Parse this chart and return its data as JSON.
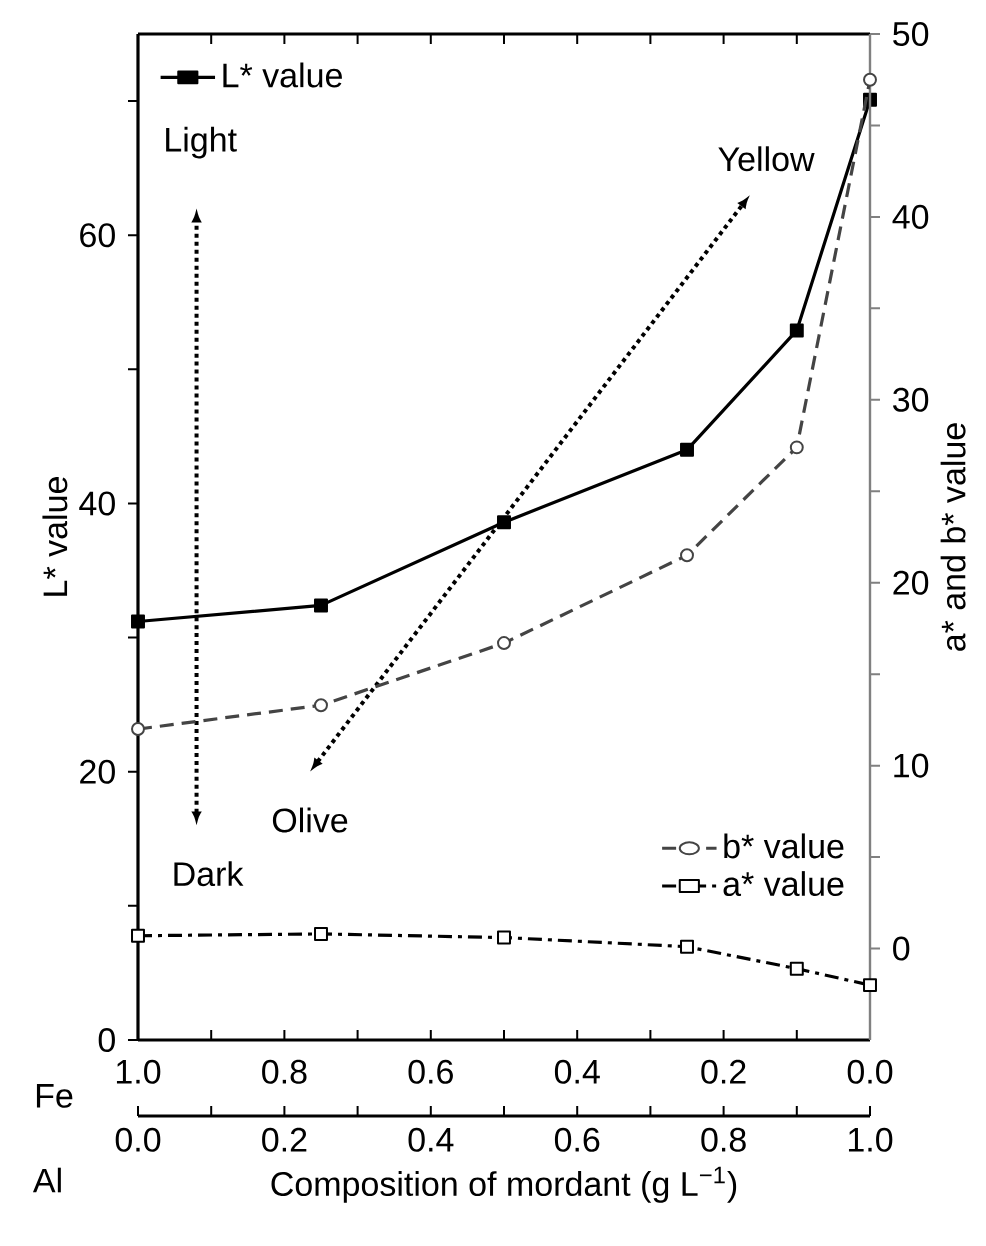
{
  "chart_data": {
    "type": "line",
    "xlabel": "Composition of mordant (g L$^{−1}$)",
    "ylabel": "L* value",
    "y2label": "a* and b* value",
    "x": [
      1.0,
      0.75,
      0.5,
      0.25,
      0.1,
      0.0
    ],
    "xlim": [
      1.0,
      0.0
    ],
    "xticks": [
      {
        "value": 1.0,
        "label": "1.0"
      },
      {
        "value": 0.9,
        "label": null
      },
      {
        "value": 0.8,
        "label": "0.8"
      },
      {
        "value": 0.7,
        "label": null
      },
      {
        "value": 0.6,
        "label": "0.6"
      },
      {
        "value": 0.5,
        "label": null
      },
      {
        "value": 0.4,
        "label": "0.4"
      },
      {
        "value": 0.3,
        "label": null
      },
      {
        "value": 0.2,
        "label": "0.2"
      },
      {
        "value": 0.1,
        "label": null
      },
      {
        "value": 0.0,
        "label": "0.0"
      }
    ],
    "x2lim": [
      0.0,
      1.0
    ],
    "x2ticks": [
      {
        "value": 0.0,
        "label": "0.0"
      },
      {
        "value": 0.1,
        "label": null
      },
      {
        "value": 0.2,
        "label": "0.2"
      },
      {
        "value": 0.3,
        "label": null
      },
      {
        "value": 0.4,
        "label": "0.4"
      },
      {
        "value": 0.5,
        "label": null
      },
      {
        "value": 0.6,
        "label": "0.6"
      },
      {
        "value": 0.7,
        "label": null
      },
      {
        "value": 0.8,
        "label": "0.8"
      },
      {
        "value": 0.9,
        "label": null
      },
      {
        "value": 1.0,
        "label": "1.0"
      }
    ],
    "ylim": [
      0,
      75
    ],
    "yticks": [
      0,
      {
        "value": 10,
        "label": null
      },
      20,
      {
        "value": 30,
        "label": null
      },
      40,
      {
        "value": 50,
        "label": null
      },
      60,
      {
        "value": 70,
        "label": null
      }
    ],
    "y2lim": [
      -5,
      50
    ],
    "y2ticks": [
      0,
      {
        "value": 5,
        "label": null
      },
      10,
      {
        "value": 15,
        "label": null
      },
      20,
      {
        "value": 25,
        "label": null
      },
      30,
      {
        "value": 35,
        "label": null
      },
      40,
      {
        "value": 45,
        "label": null
      },
      50
    ],
    "series": [
      {
        "name": "L* value",
        "color": "#000000",
        "marker": "square",
        "line_style": "solid",
        "values": [
          31.2,
          32.4,
          38.6,
          44.0,
          52.9,
          70.1
        ]
      },
      {
        "name": "b* value",
        "color": "#444444",
        "marker": "circle",
        "line_style": "dashed",
        "axis": "y2",
        "values": [
          12.0,
          13.3,
          16.7,
          21.5,
          27.4,
          47.5
        ]
      },
      {
        "name": "a* value",
        "color": "#000000",
        "marker": "square",
        "line_style": "dashdot",
        "axis": "y2",
        "values": [
          0.7,
          0.8,
          0.6,
          0.1,
          -1.1,
          -2.0
        ]
      }
    ],
    "legend": "top left",
    "annotations": [
      "Light",
      "Dark",
      "Olive",
      "Yellow",
      "Fe",
      "Al"
    ]
  }
}
